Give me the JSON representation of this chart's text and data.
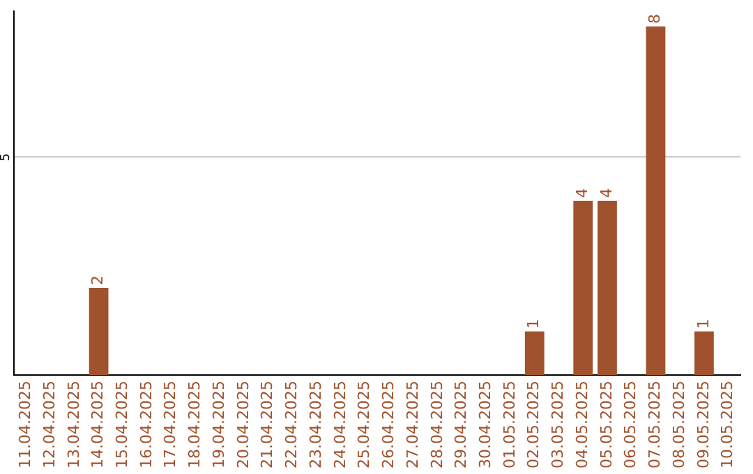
{
  "chart_data": {
    "type": "bar",
    "categories": [
      "11.04.2025",
      "12.04.2025",
      "13.04.2025",
      "14.04.2025",
      "15.04.2025",
      "16.04.2025",
      "17.04.2025",
      "18.04.2025",
      "19.04.2025",
      "20.04.2025",
      "21.04.2025",
      "22.04.2025",
      "23.04.2025",
      "24.04.2025",
      "25.04.2025",
      "26.04.2025",
      "27.04.2025",
      "28.04.2025",
      "29.04.2025",
      "30.04.2025",
      "01.05.2025",
      "02.05.2025",
      "03.05.2025",
      "04.05.2025",
      "05.05.2025",
      "06.05.2025",
      "07.05.2025",
      "08.05.2025",
      "09.05.2025",
      "10.05.2025"
    ],
    "values": [
      0,
      0,
      0,
      2,
      0,
      0,
      0,
      0,
      0,
      0,
      0,
      0,
      0,
      0,
      0,
      0,
      0,
      0,
      0,
      0,
      0,
      1,
      0,
      4,
      4,
      0,
      8,
      0,
      1,
      0
    ],
    "value_labels": [
      null,
      null,
      null,
      "2",
      null,
      null,
      null,
      null,
      null,
      null,
      null,
      null,
      null,
      null,
      null,
      null,
      null,
      null,
      null,
      null,
      null,
      "1",
      null,
      "4",
      "4",
      null,
      "8",
      null,
      "1",
      null
    ],
    "color": "#a0522d",
    "ylim": [
      0,
      8.35
    ],
    "yticks": [
      5
    ],
    "grid": "y",
    "legend": false
  }
}
